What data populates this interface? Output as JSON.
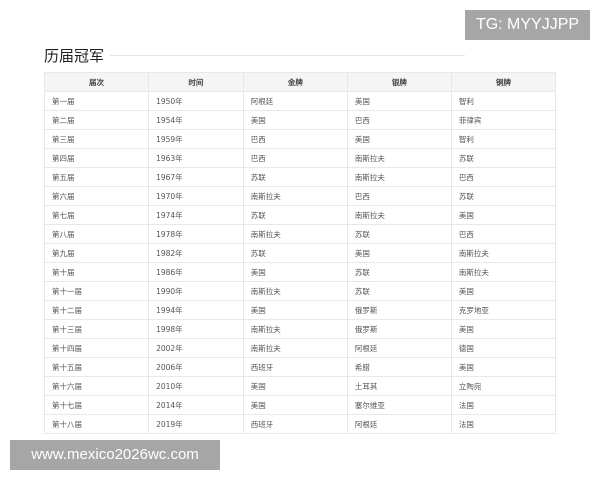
{
  "title": "历届冠军",
  "table": {
    "headers": [
      "届次",
      "时间",
      "金牌",
      "银牌",
      "铜牌"
    ],
    "rows": [
      [
        "第一届",
        "1950年",
        "阿根廷",
        "美国",
        "智利"
      ],
      [
        "第二届",
        "1954年",
        "美国",
        "巴西",
        "菲律宾"
      ],
      [
        "第三届",
        "1959年",
        "巴西",
        "美国",
        "智利"
      ],
      [
        "第四届",
        "1963年",
        "巴西",
        "南斯拉夫",
        "苏联"
      ],
      [
        "第五届",
        "1967年",
        "苏联",
        "南斯拉夫",
        "巴西"
      ],
      [
        "第六届",
        "1970年",
        "南斯拉夫",
        "巴西",
        "苏联"
      ],
      [
        "第七届",
        "1974年",
        "苏联",
        "南斯拉夫",
        "美国"
      ],
      [
        "第八届",
        "1978年",
        "南斯拉夫",
        "苏联",
        "巴西"
      ],
      [
        "第九届",
        "1982年",
        "苏联",
        "美国",
        "南斯拉夫"
      ],
      [
        "第十届",
        "1986年",
        "美国",
        "苏联",
        "南斯拉夫"
      ],
      [
        "第十一届",
        "1990年",
        "南斯拉夫",
        "苏联",
        "美国"
      ],
      [
        "第十二届",
        "1994年",
        "美国",
        "俄罗斯",
        "克罗地亚"
      ],
      [
        "第十三届",
        "1998年",
        "南斯拉夫",
        "俄罗斯",
        "美国"
      ],
      [
        "第十四届",
        "2002年",
        "南斯拉夫",
        "阿根廷",
        "德国"
      ],
      [
        "第十五届",
        "2006年",
        "西班牙",
        "希腊",
        "美国"
      ],
      [
        "第十六届",
        "2010年",
        "美国",
        "土耳其",
        "立陶宛"
      ],
      [
        "第十七届",
        "2014年",
        "美国",
        "塞尔维亚",
        "法国"
      ],
      [
        "第十八届",
        "2019年",
        "西班牙",
        "阿根廷",
        "法国"
      ]
    ]
  },
  "watermarks": {
    "tg": "TG: MYYJJPP",
    "site": "www.mexico2026wc.com"
  }
}
